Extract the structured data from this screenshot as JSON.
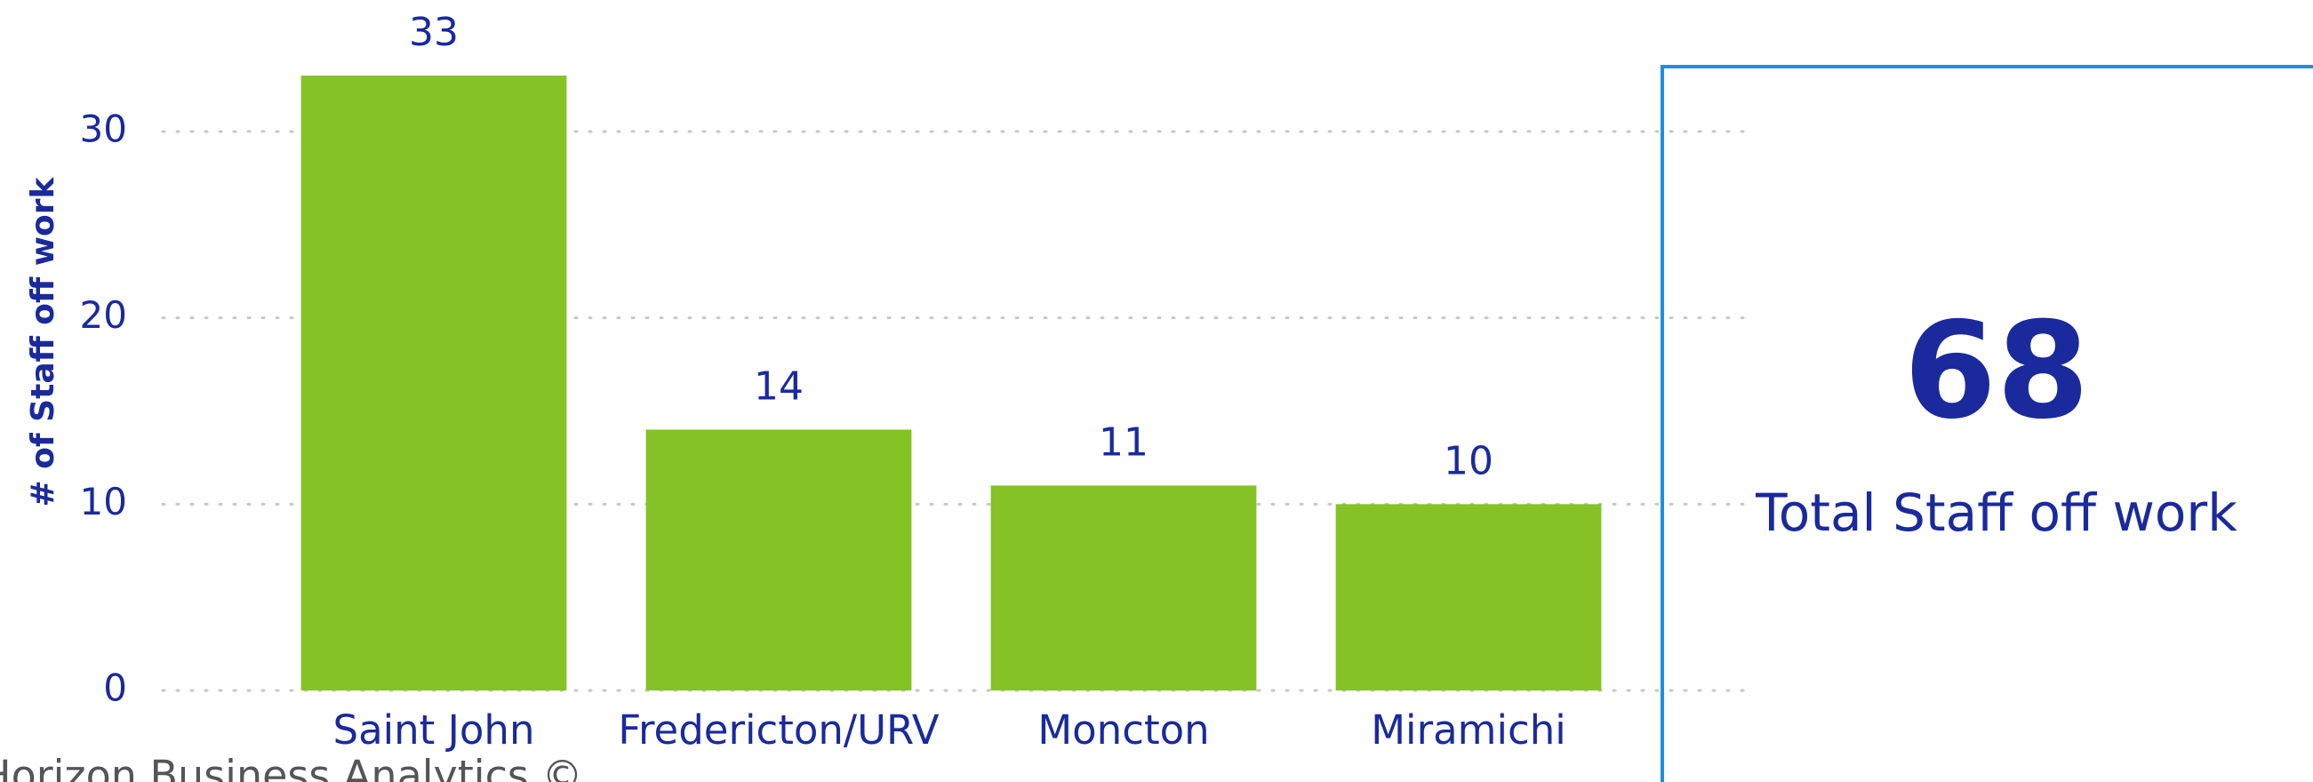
{
  "chart_data": {
    "type": "bar",
    "y_label": "# of Staff off work",
    "categories": [
      "Saint John",
      "Fredericton/URV",
      "Moncton",
      "Miramichi"
    ],
    "values": [
      33,
      14,
      11,
      10
    ],
    "color": "#84c225",
    "ylim": [
      0,
      33.6
    ],
    "yticks": [
      0,
      10,
      20,
      30
    ],
    "grid": true,
    "data_labels": true
  },
  "card": {
    "value": 68,
    "label": "Total Staff off work"
  },
  "footer": "Horizon Business Analytics ©"
}
